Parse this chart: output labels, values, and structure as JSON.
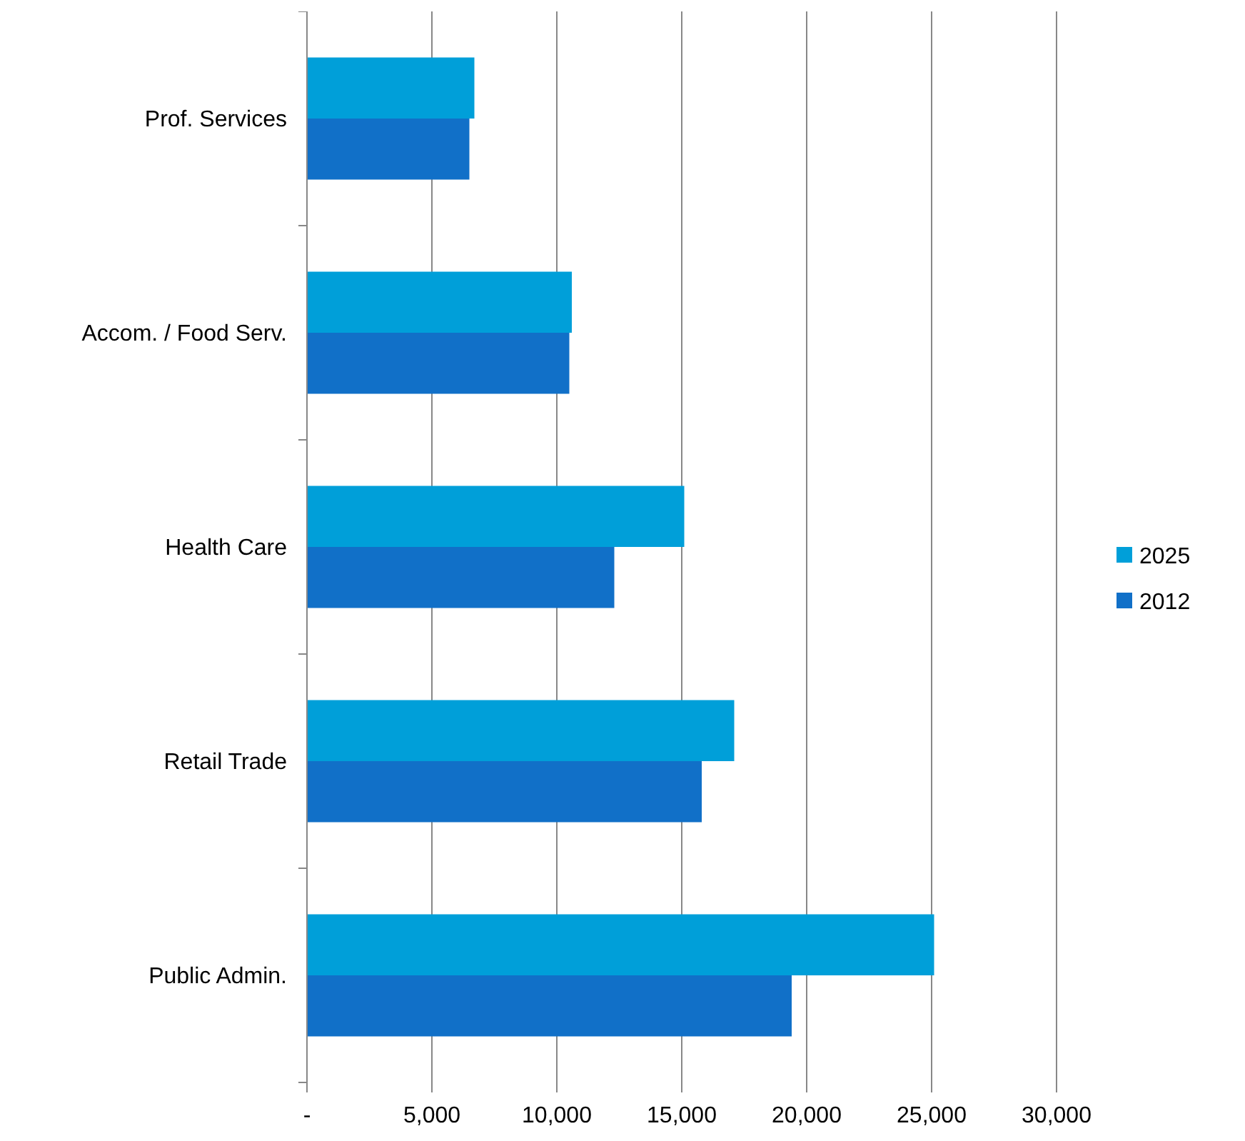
{
  "chart_data": {
    "type": "bar",
    "orientation": "horizontal",
    "categories": [
      "Prof. Services",
      "Accom. / Food Serv.",
      "Health Care",
      "Retail Trade",
      "Public Admin."
    ],
    "series": [
      {
        "name": "2025",
        "color": "#009fd9",
        "values": [
          6700,
          10600,
          15100,
          17100,
          25100
        ]
      },
      {
        "name": "2012",
        "color": "#1170c8",
        "values": [
          6500,
          10500,
          12300,
          15800,
          19400
        ]
      }
    ],
    "xlim": [
      0,
      30000
    ],
    "xticks": [
      {
        "value": 0,
        "label": "-"
      },
      {
        "value": 5000,
        "label": "5,000"
      },
      {
        "value": 10000,
        "label": "10,000"
      },
      {
        "value": 15000,
        "label": "15,000"
      },
      {
        "value": 20000,
        "label": "20,000"
      },
      {
        "value": 25000,
        "label": "25,000"
      },
      {
        "value": 30000,
        "label": "30,000"
      }
    ],
    "grid": "x",
    "legend": "right"
  }
}
